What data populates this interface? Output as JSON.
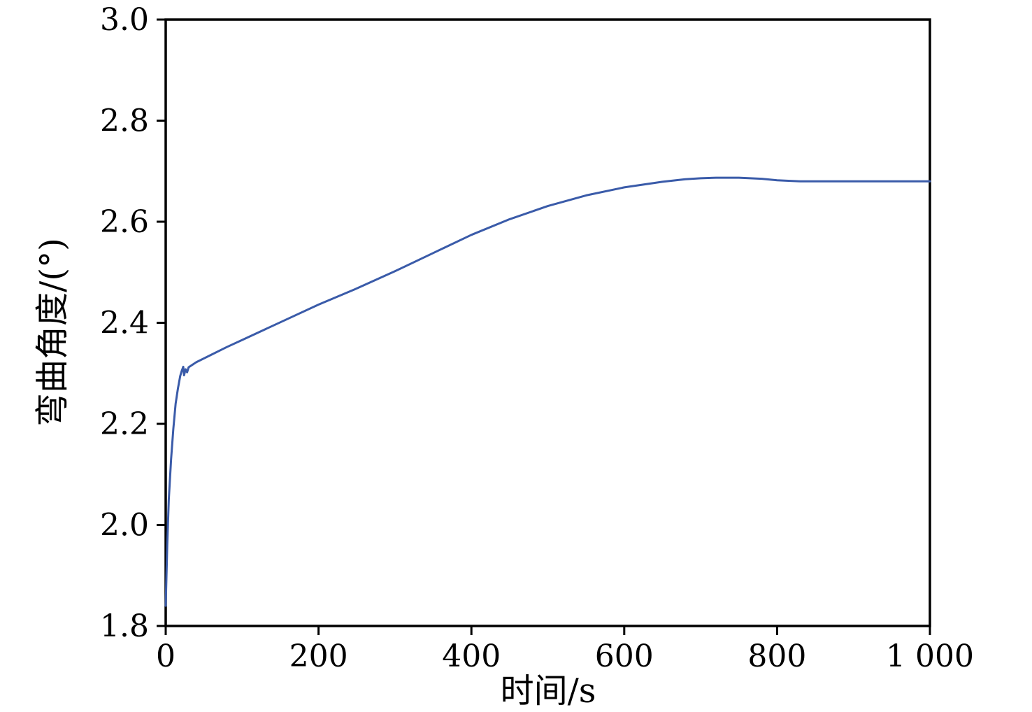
{
  "chart_data": {
    "type": "line",
    "title": "",
    "xlabel": "时间/s",
    "ylabel": "弯曲角度/(°)",
    "xlim": [
      0,
      1000
    ],
    "ylim": [
      1.8,
      3.0
    ],
    "grid": false,
    "legend": "none",
    "axis_color": "#000000",
    "line_color": "#3a5ba9",
    "xticks": {
      "values": [
        0,
        200,
        400,
        600,
        800,
        1000
      ],
      "labels": [
        "0",
        "200",
        "400",
        "600",
        "800",
        "1 000"
      ]
    },
    "yticks": {
      "values": [
        1.8,
        2.0,
        2.2,
        2.4,
        2.6,
        2.8,
        3.0
      ],
      "labels": [
        "1.8",
        "2.0",
        "2.2",
        "2.4",
        "2.6",
        "2.8",
        "3.0"
      ]
    },
    "series": [
      {
        "name": "弯曲角度",
        "x": [
          0,
          2,
          4,
          7,
          10,
          13,
          16,
          19,
          21,
          23,
          24,
          26,
          28,
          30,
          40,
          60,
          80,
          100,
          150,
          200,
          250,
          300,
          350,
          400,
          450,
          500,
          550,
          600,
          650,
          680,
          700,
          720,
          750,
          780,
          800,
          830,
          860,
          900,
          950,
          1000
        ],
        "y": [
          1.84,
          1.96,
          2.05,
          2.13,
          2.19,
          2.24,
          2.27,
          2.295,
          2.305,
          2.313,
          2.296,
          2.308,
          2.302,
          2.312,
          2.322,
          2.337,
          2.352,
          2.366,
          2.401,
          2.436,
          2.468,
          2.502,
          2.538,
          2.574,
          2.605,
          2.631,
          2.652,
          2.668,
          2.679,
          2.684,
          2.686,
          2.687,
          2.687,
          2.685,
          2.682,
          2.68,
          2.68,
          2.68,
          2.68,
          2.68
        ]
      }
    ]
  }
}
